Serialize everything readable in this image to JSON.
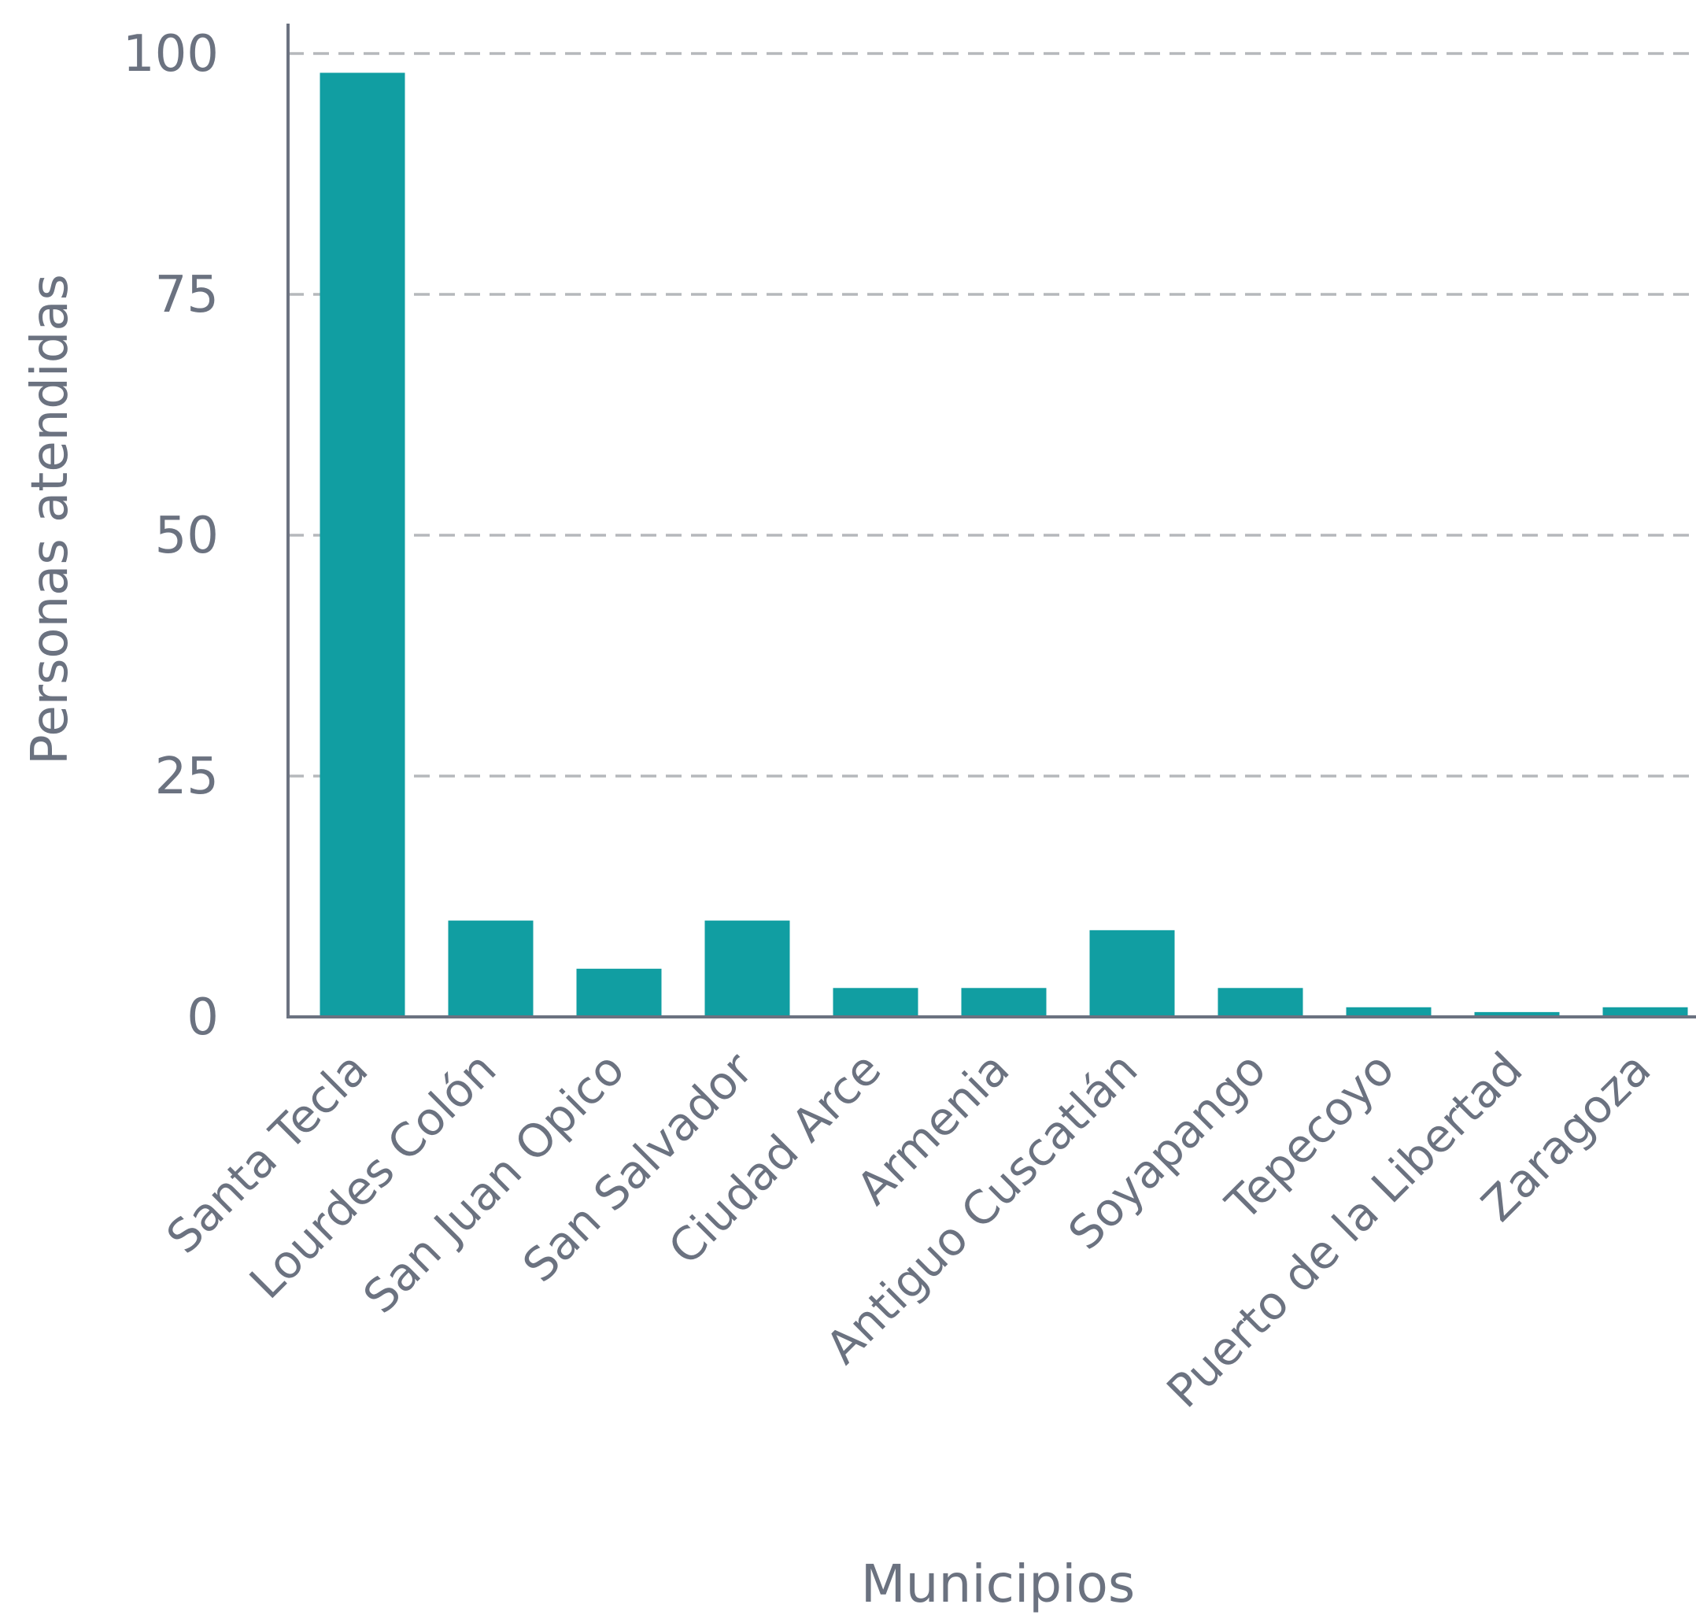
{
  "chart_data": {
    "type": "bar",
    "title": "",
    "xlabel": "Municipios",
    "ylabel": "Personas atendidas",
    "categories": [
      "Santa Tecla",
      "Lourdes Colón",
      "San Juan Opico",
      "San Salvador",
      "Ciudad Arce",
      "Armenia",
      "Antiguo Cuscatlán",
      "Soyapango",
      "Tepecoyo",
      "Puerto de la Libertad",
      "Zaragoza"
    ],
    "values": [
      98,
      10,
      5,
      10,
      3,
      3,
      9,
      3,
      1,
      0.5,
      1
    ],
    "ylim": [
      0,
      100
    ],
    "yticks": [
      0,
      25,
      50,
      75,
      100
    ],
    "grid": true,
    "colors": {
      "bar": "#119ea2",
      "axis": "#6b7280",
      "grid": "#b5b8bc",
      "text": "#6b7280"
    }
  }
}
